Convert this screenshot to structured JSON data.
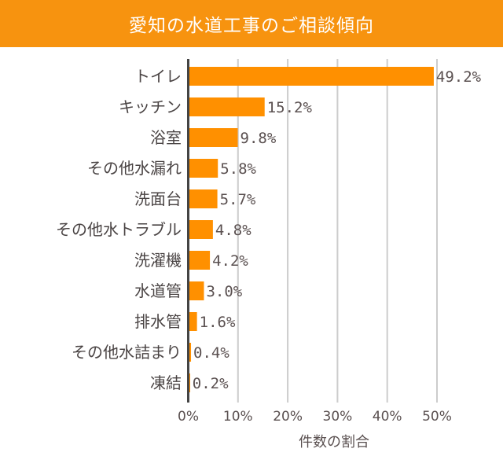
{
  "chart_data": {
    "type": "bar",
    "orientation": "horizontal",
    "title": "愛知の水道工事のご相談傾向",
    "xlabel": "件数の割合",
    "ylabel": "",
    "categories": [
      "トイレ",
      "キッチン",
      "浴室",
      "その他水漏れ",
      "洗面台",
      "その他水トラブル",
      "洗濯機",
      "水道管",
      "排水管",
      "その他水詰まり",
      "凍結"
    ],
    "values": [
      49.2,
      15.2,
      9.8,
      5.8,
      5.7,
      4.8,
      4.2,
      3.0,
      1.6,
      0.4,
      0.2
    ],
    "value_labels": [
      "49.2%",
      "15.2%",
      "9.8%",
      "5.8%",
      "5.7%",
      "4.8%",
      "4.2%",
      "3.0%",
      "1.6%",
      "0.4%",
      "0.2%"
    ],
    "xlim": [
      0,
      50
    ],
    "xticks": [
      "0%",
      "10%",
      "20%",
      "30%",
      "40%",
      "50%"
    ],
    "grid": true,
    "colors": {
      "bar": "#ff9000",
      "title_bg": "#f7930f",
      "grid": "#cccccc",
      "axis": "#444444"
    }
  }
}
